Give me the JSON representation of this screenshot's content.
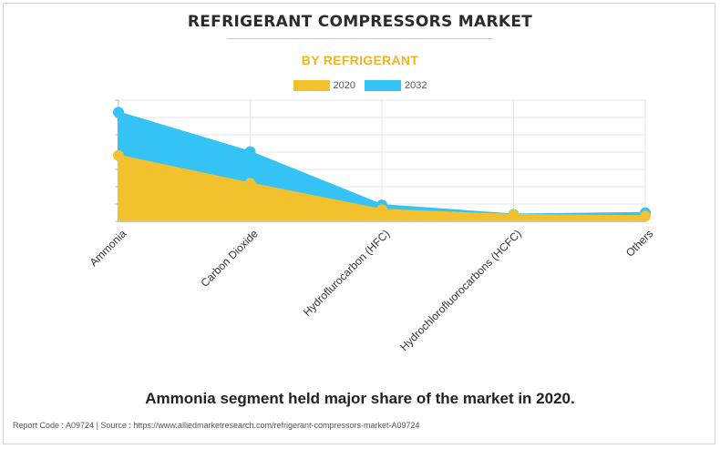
{
  "header": {
    "title": "REFRIGERANT COMPRESSORS MARKET",
    "subtitle": "BY REFRIGERANT"
  },
  "colors": {
    "series_2020": "#f2c12e",
    "series_2032": "#35c3f5",
    "subtitle": "#f0b323"
  },
  "chart_data": {
    "type": "area",
    "categories": [
      "Ammonia",
      "Carbon Dioxide",
      "Hydroflurocarbon (HFC)",
      "Hydrochlorofluorocarbons (HCFC)",
      "Others"
    ],
    "series": [
      {
        "name": "2020",
        "values": [
          12.5,
          7.2,
          2.2,
          1.2,
          1.0
        ]
      },
      {
        "name": "2032",
        "values": [
          20.7,
          13.2,
          3.1,
          1.3,
          1.6
        ]
      }
    ],
    "ylim": [
      0,
      23
    ],
    "grid": true,
    "legend_position": "top-center",
    "xlabel": "",
    "ylabel": ""
  },
  "caption": "Ammonia segment held major share of the market in 2020.",
  "footer": "Report Code : A09724  |  Source : https://www.alliedmarketresearch.com/refrigerant-compressors-market-A09724"
}
